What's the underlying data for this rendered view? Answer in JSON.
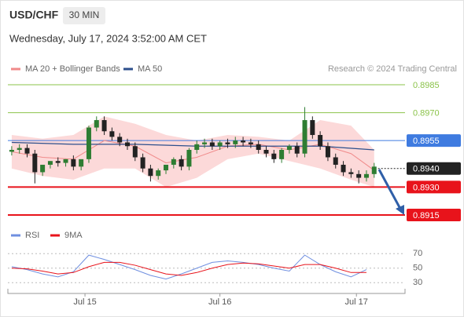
{
  "chart_data": [
    {
      "type": "candlestick",
      "title": "USD/CHF",
      "timeframe": "30 MIN",
      "subtitle": "Wednesday, July 17, 2024 3:52:00 AM CET",
      "source": "Research © 2024 Trading Central",
      "xlim": [
        -0.5,
        51
      ],
      "ylim": [
        0.8915,
        0.8985
      ],
      "candles": {
        "color_up": "#2e7d32",
        "color_down": "#222222",
        "open": [
          0.8949,
          0.895,
          0.8951,
          0.8948,
          0.8938,
          0.8942,
          0.8944,
          0.8943,
          0.8945,
          0.8941,
          0.8945,
          0.8962,
          0.8966,
          0.896,
          0.8957,
          0.8954,
          0.8952,
          0.8946,
          0.894,
          0.8936,
          0.8939,
          0.8942,
          0.8945,
          0.8941,
          0.895,
          0.8953,
          0.8954,
          0.8952,
          0.8954,
          0.8953,
          0.8955,
          0.8954,
          0.8953,
          0.895,
          0.8948,
          0.8945,
          0.895,
          0.8952,
          0.8948,
          0.8966,
          0.8958,
          0.8952,
          0.8946,
          0.8942,
          0.8938,
          0.8937,
          0.8935,
          0.8937
        ],
        "high": [
          0.8952,
          0.8953,
          0.8953,
          0.895,
          0.8941,
          0.8944,
          0.8946,
          0.8945,
          0.8947,
          0.8943,
          0.8963,
          0.8968,
          0.8968,
          0.8962,
          0.8959,
          0.8956,
          0.8954,
          0.8948,
          0.8942,
          0.894,
          0.8942,
          0.8946,
          0.8947,
          0.8951,
          0.8955,
          0.8956,
          0.8956,
          0.8955,
          0.8956,
          0.8957,
          0.8957,
          0.8956,
          0.8955,
          0.8952,
          0.895,
          0.8951,
          0.8953,
          0.8954,
          0.8973,
          0.8968,
          0.896,
          0.8954,
          0.8948,
          0.8944,
          0.894,
          0.8939,
          0.8939,
          0.8943
        ],
        "low": [
          0.8947,
          0.8948,
          0.8946,
          0.8932,
          0.8936,
          0.894,
          0.8941,
          0.8941,
          0.8939,
          0.8939,
          0.8943,
          0.896,
          0.8958,
          0.8955,
          0.8952,
          0.895,
          0.8944,
          0.8938,
          0.8933,
          0.8934,
          0.8937,
          0.894,
          0.8939,
          0.8939,
          0.8948,
          0.8951,
          0.895,
          0.895,
          0.8951,
          0.8951,
          0.8952,
          0.8951,
          0.8948,
          0.8946,
          0.8943,
          0.8943,
          0.8948,
          0.8946,
          0.8946,
          0.8956,
          0.895,
          0.8944,
          0.894,
          0.8936,
          0.8935,
          0.8932,
          0.8933,
          0.8935
        ],
        "close": [
          0.895,
          0.8951,
          0.8948,
          0.8938,
          0.8942,
          0.8944,
          0.8943,
          0.8945,
          0.8941,
          0.8945,
          0.8962,
          0.8966,
          0.896,
          0.8957,
          0.8954,
          0.8952,
          0.8946,
          0.894,
          0.8936,
          0.8939,
          0.8942,
          0.8945,
          0.8941,
          0.895,
          0.8953,
          0.8954,
          0.8952,
          0.8954,
          0.8953,
          0.8955,
          0.8954,
          0.8953,
          0.895,
          0.8948,
          0.8945,
          0.895,
          0.8952,
          0.8948,
          0.8966,
          0.8958,
          0.8952,
          0.8946,
          0.8942,
          0.8938,
          0.8937,
          0.8935,
          0.8937,
          0.8941
        ]
      },
      "series": [
        {
          "name": "MA 20 + Bollinger Bands",
          "color": "#f08a8a",
          "band_color": "#fcd9d9",
          "x": [
            0,
            4,
            8,
            12,
            16,
            20,
            24,
            28,
            32,
            36,
            40,
            44,
            47
          ],
          "values": [
            0.8949,
            0.8946,
            0.8945,
            0.8955,
            0.8952,
            0.8943,
            0.8946,
            0.8952,
            0.8953,
            0.895,
            0.8953,
            0.8948,
            0.8939
          ],
          "upper": [
            0.8958,
            0.8956,
            0.8958,
            0.8968,
            0.8964,
            0.8958,
            0.8955,
            0.8958,
            0.8957,
            0.8955,
            0.8966,
            0.8963,
            0.895
          ],
          "lower": [
            0.894,
            0.8936,
            0.8934,
            0.894,
            0.894,
            0.893,
            0.8935,
            0.8945,
            0.8948,
            0.8944,
            0.894,
            0.8934,
            0.893
          ]
        },
        {
          "name": "MA 50",
          "color": "#2c4f8c",
          "x": [
            0,
            8,
            16,
            24,
            32,
            40,
            47
          ],
          "values": [
            0.8954,
            0.8953,
            0.8953,
            0.8952,
            0.8952,
            0.8952,
            0.895
          ]
        }
      ],
      "levels": [
        {
          "value": 0.8985,
          "label": "0.8985",
          "color": "#8bc34a",
          "style": "text",
          "line": "solid"
        },
        {
          "value": 0.897,
          "label": "0.8970",
          "color": "#8bc34a",
          "style": "text",
          "line": "solid"
        },
        {
          "value": 0.8955,
          "label": "0.8955",
          "color": "#3f7be0",
          "style": "box",
          "line": "solid"
        },
        {
          "value": 0.894,
          "label": "0.8940",
          "color": "#222222",
          "style": "box",
          "line": "dotted"
        },
        {
          "value": 0.893,
          "label": "0.8930",
          "color": "#e8131b",
          "style": "box",
          "line": "solid"
        },
        {
          "value": 0.8915,
          "label": "0.8915",
          "color": "#e8131b",
          "style": "box",
          "line": "solid"
        }
      ]
    },
    {
      "type": "line",
      "xlim": [
        -0.5,
        51
      ],
      "ylim": [
        20,
        80
      ],
      "yticks": [
        30,
        50,
        70
      ],
      "xticks": [
        {
          "value": 9.5,
          "label": "Jul 15"
        },
        {
          "value": 27,
          "label": "Jul 16"
        },
        {
          "value": 44.7,
          "label": "Jul 17"
        }
      ],
      "series": [
        {
          "name": "RSI",
          "color": "#6f8fe0",
          "x": [
            0,
            2,
            4,
            6,
            8,
            10,
            12,
            14,
            16,
            18,
            20,
            22,
            24,
            26,
            28,
            30,
            32,
            34,
            36,
            38,
            40,
            42,
            44,
            46
          ],
          "values": [
            52,
            48,
            42,
            38,
            45,
            68,
            62,
            55,
            48,
            40,
            35,
            42,
            50,
            58,
            60,
            58,
            55,
            50,
            46,
            68,
            55,
            45,
            38,
            48
          ]
        },
        {
          "name": "9MA",
          "color": "#e8131b",
          "x": [
            0,
            2,
            4,
            6,
            8,
            10,
            12,
            14,
            16,
            18,
            20,
            22,
            24,
            26,
            28,
            30,
            32,
            34,
            36,
            38,
            40,
            42,
            44,
            46
          ],
          "values": [
            50,
            49,
            46,
            42,
            44,
            52,
            58,
            58,
            54,
            48,
            42,
            40,
            44,
            50,
            55,
            57,
            56,
            53,
            50,
            55,
            55,
            50,
            44,
            44
          ]
        }
      ]
    }
  ]
}
